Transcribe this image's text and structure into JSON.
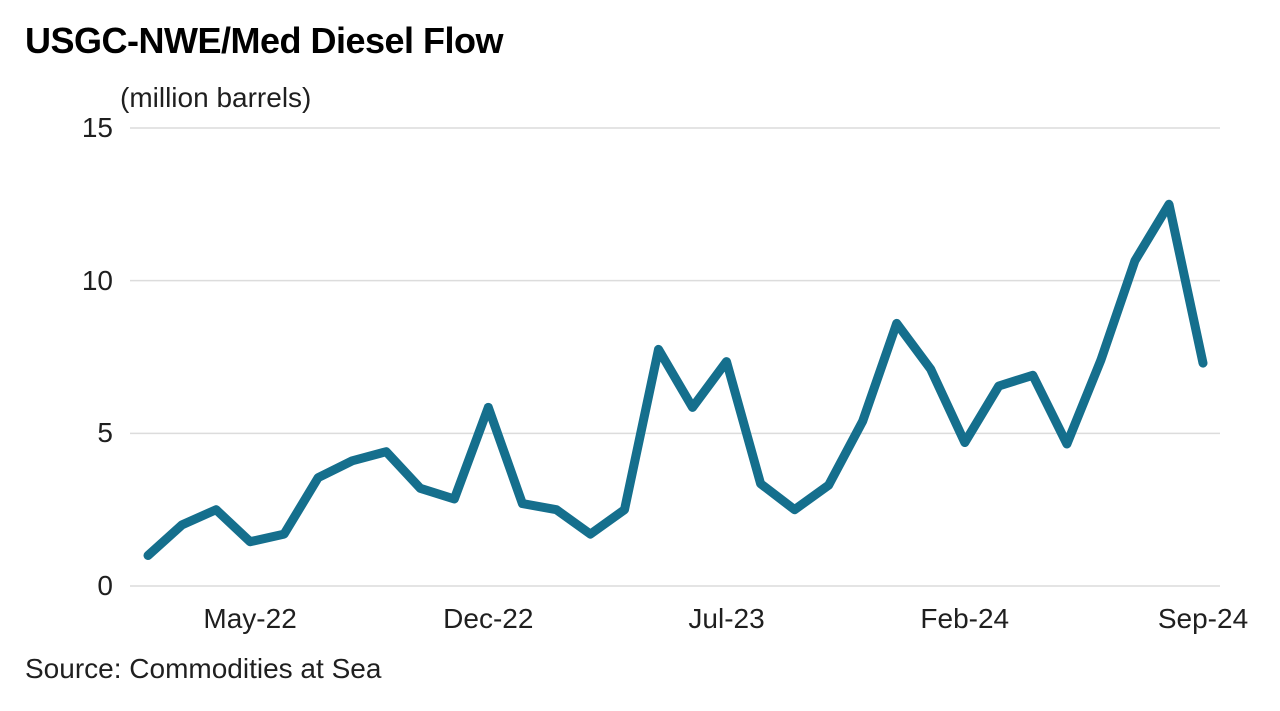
{
  "header": {
    "title": "USGC-NWE/Med Diesel Flow",
    "subtitle": "(million barrels)"
  },
  "footer": {
    "source": "Source: Commodities at Sea"
  },
  "colors": {
    "line": "#156f8d",
    "grid": "#dcdcdc",
    "title_text": "#000000",
    "axis_text": "#1f1f1f",
    "background": "#ffffff"
  },
  "chart_data": {
    "type": "line",
    "title": "USGC-NWE/Med Diesel Flow",
    "unit_label": "(million barrels)",
    "source": "Source: Commodities at Sea",
    "legend": "none",
    "grid": "horizontal-only",
    "ylim": [
      0,
      15
    ],
    "yticks": [
      0,
      5,
      10,
      15
    ],
    "xtick_labels": [
      "May-22",
      "Dec-22",
      "Jul-23",
      "Feb-24",
      "Sep-24"
    ],
    "xtick_indices": [
      3,
      10,
      17,
      24,
      31
    ],
    "x": [
      "Feb-22",
      "Mar-22",
      "Apr-22",
      "May-22",
      "Jun-22",
      "Jul-22",
      "Aug-22",
      "Sep-22",
      "Oct-22",
      "Nov-22",
      "Dec-22",
      "Jan-23",
      "Feb-23",
      "Mar-23",
      "Apr-23",
      "May-23",
      "Jun-23",
      "Jul-23",
      "Aug-23",
      "Sep-23",
      "Oct-23",
      "Nov-23",
      "Dec-23",
      "Jan-24",
      "Feb-24",
      "Mar-24",
      "Apr-24",
      "May-24",
      "Jun-24",
      "Jul-24",
      "Aug-24",
      "Sep-24"
    ],
    "series": [
      {
        "name": "USGC-NWE/Med diesel flow",
        "values": [
          1.0,
          2.0,
          2.5,
          1.45,
          1.7,
          3.55,
          4.1,
          4.4,
          3.2,
          2.85,
          5.85,
          2.7,
          2.5,
          1.7,
          2.5,
          7.75,
          5.85,
          7.35,
          3.35,
          2.5,
          3.3,
          5.4,
          8.6,
          7.1,
          4.7,
          6.55,
          6.9,
          4.65,
          7.4,
          10.65,
          12.5,
          7.3
        ]
      }
    ]
  }
}
